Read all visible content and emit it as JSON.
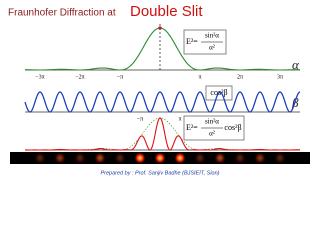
{
  "header": {
    "title_prefix": "Fraunhofer Diffraction at",
    "title_main": "Double Slit"
  },
  "plots": [
    {
      "axis_label": "α",
      "tick_labels": [
        "−3π",
        "−2π",
        "−π",
        "π",
        "2π",
        "3π"
      ],
      "formula": {
        "lhs": "E²=",
        "numerator": "sin²α",
        "denominator": "α²"
      }
    },
    {
      "axis_label": "β",
      "tick_labels": [
        "−π",
        "π"
      ],
      "formula": {
        "factor": "cos²β"
      }
    },
    {
      "formula": {
        "lhs": "E²=",
        "numerator": "sin²α",
        "denominator": "α²",
        "factor": "cos²β"
      }
    }
  ],
  "footer": "Prepared by : Prof. Sanjiv Badhe (BJSIEIT, Sion)"
}
